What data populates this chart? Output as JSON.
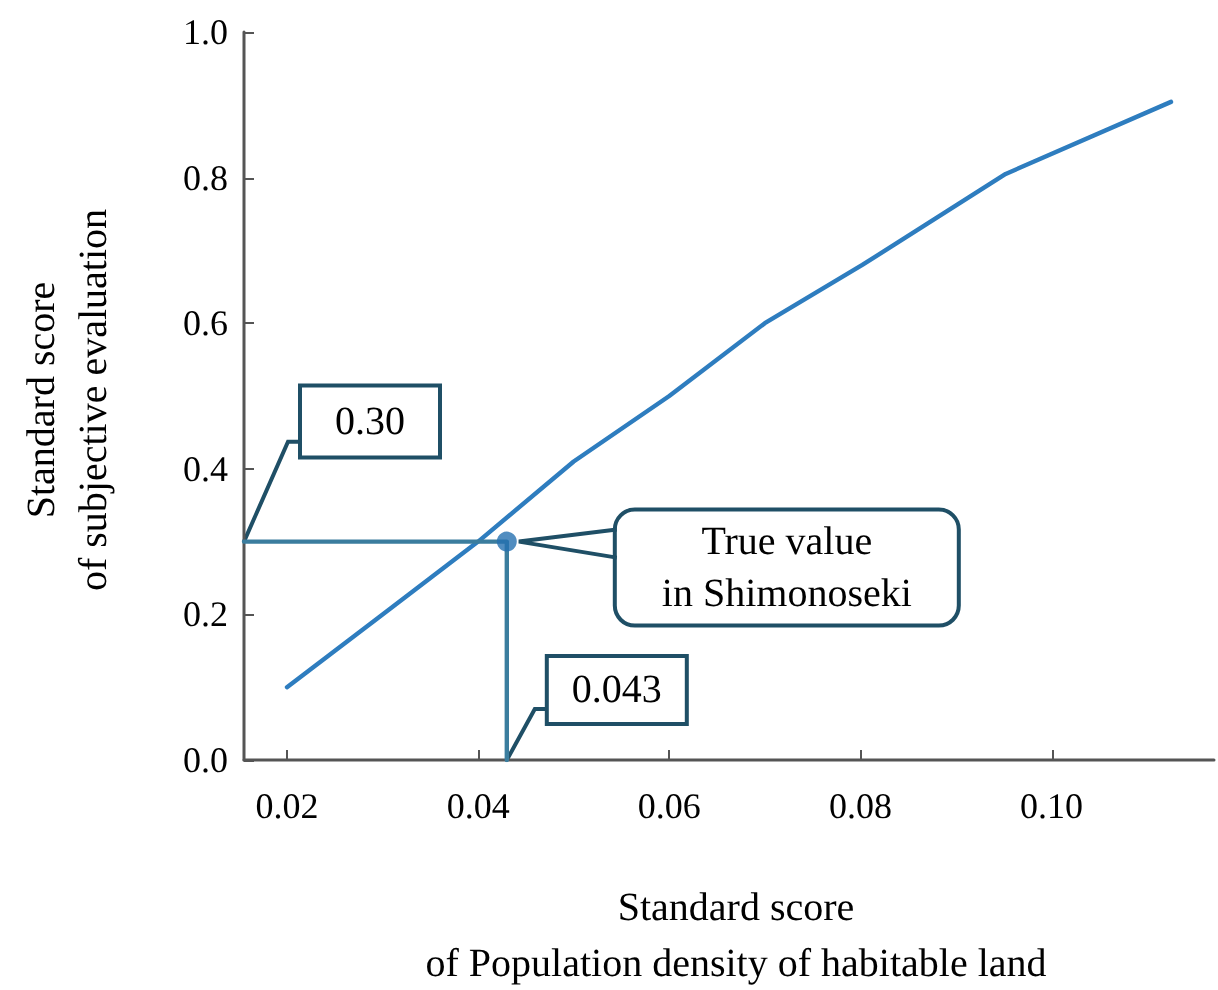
{
  "chart_data": {
    "type": "line",
    "xlabel": "Standard score\nof Population density of habitable land",
    "ylabel": "Standard score\nof subjective evaluation",
    "xlim": [
      0.0155,
      0.117
    ],
    "ylim": [
      0,
      1.0
    ],
    "xticks": [
      {
        "value": 0.02,
        "label": "0.02"
      },
      {
        "value": 0.04,
        "label": "0.04"
      },
      {
        "value": 0.06,
        "label": "0.06"
      },
      {
        "value": 0.08,
        "label": "0.08"
      },
      {
        "value": 0.1,
        "label": "0.10"
      }
    ],
    "yticks": [
      {
        "value": 0,
        "label": "0.0"
      },
      {
        "value": 0.2,
        "label": "0.2"
      },
      {
        "value": 0.4,
        "label": "0.4"
      },
      {
        "value": 0.6,
        "label": "0.6"
      },
      {
        "value": 0.8,
        "label": "0.8"
      },
      {
        "value": 1.0,
        "label": "1.0"
      }
    ],
    "grid": false,
    "marker": "none",
    "line_style": "solid",
    "series": [
      {
        "color": "#2e7dbf",
        "x": [
          0.02,
          0.03,
          0.04,
          0.05,
          0.06,
          0.07,
          0.0802,
          0.0952,
          0.1125
        ],
        "values": [
          0.1,
          0.2,
          0.3,
          0.41,
          0.5,
          0.6,
          0.68,
          0.805,
          0.904
        ]
      },
      {
        "type": "line",
        "color": "#3b7d9e",
        "x": [
          0.0155,
          0.043,
          0.043
        ],
        "values": [
          0.3,
          0.3,
          0
        ]
      },
      {
        "type": "scatter",
        "color": "#2670b0",
        "marker": "circle",
        "x": [
          0.043
        ],
        "values": [
          0.3
        ]
      }
    ],
    "annotations": [
      {
        "text": "0.30",
        "y": 0.3
      },
      {
        "text": "0.043",
        "x": 0.043
      },
      "True value\nin Shimonoseki"
    ]
  }
}
